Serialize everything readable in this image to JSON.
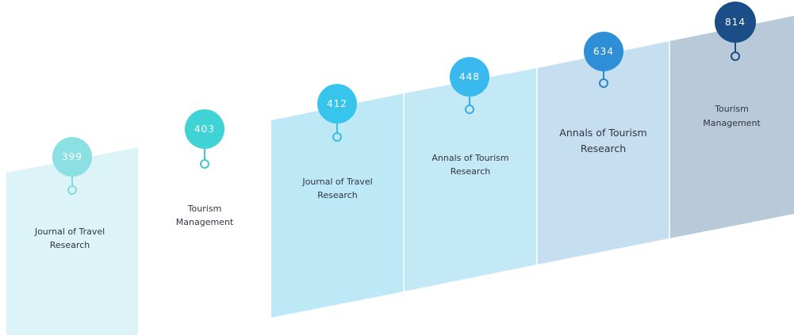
{
  "chart_data": {
    "type": "bar",
    "categories": [
      "Journal of Travel Research",
      "Tourism Management",
      "Journal of Travel Research",
      "Annals of Tourism Research",
      "Annals of Tourism Research",
      "Tourism Management"
    ],
    "values": [
      399,
      403,
      412,
      448,
      634,
      814
    ],
    "value_labels": [
      "399",
      "403",
      "412",
      "448",
      "634",
      "814"
    ],
    "label_lines": [
      [
        "Journal of Travel",
        "Research"
      ],
      [
        "Tourism",
        "Management"
      ],
      [
        "Journal of Travel",
        "Research"
      ],
      [
        "Annals of Tourism",
        "Research"
      ],
      [
        "Annals of Tourism",
        "Research"
      ],
      [
        "Tourism",
        "Management"
      ]
    ],
    "bar_colors": [
      "#dcf3f7",
      "#ffffff",
      "#bde8f6",
      "#c3e9f6",
      "#c5dff0",
      "#b8c9d9"
    ],
    "pin_colors": [
      "#8be0e4",
      "#3fd3d5",
      "#38c5ec",
      "#3ab9ee",
      "#2f8fd6",
      "#1b4e86"
    ],
    "stem_colors": [
      "#86d9df",
      "#3fc9cf",
      "#39bde4",
      "#36aee6",
      "#2b84c8",
      "#1d4e80"
    ]
  }
}
